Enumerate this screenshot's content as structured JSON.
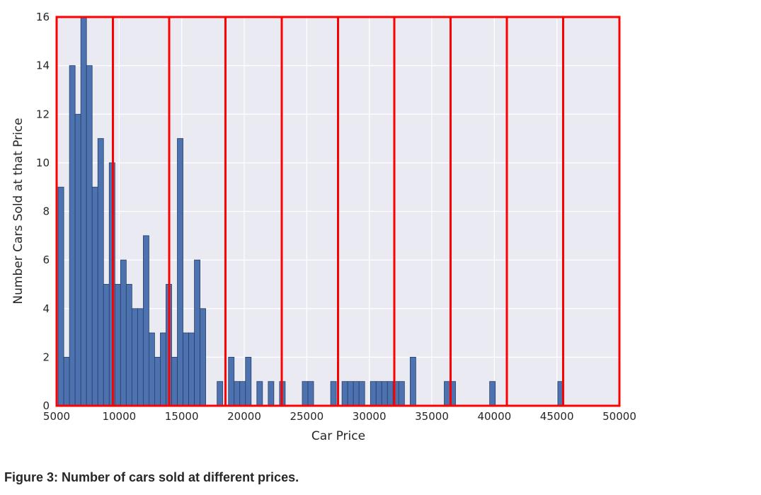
{
  "figure": {
    "caption": "Figure 3: Number of cars sold at different prices."
  },
  "chart_data": {
    "type": "bar",
    "title": "",
    "xlabel": "Car Price",
    "ylabel": "Number Cars Sold at that Price",
    "xlim": [
      5000,
      50000
    ],
    "ylim": [
      0,
      16
    ],
    "xticks": [
      5000,
      10000,
      15000,
      20000,
      25000,
      30000,
      35000,
      40000,
      45000,
      50000
    ],
    "yticks": [
      0,
      2,
      4,
      6,
      8,
      10,
      12,
      14,
      16
    ],
    "grid": true,
    "bin_width": 454,
    "series": [
      {
        "bin_starts": [
          5118,
          5572,
          6026,
          6480,
          6934,
          7388,
          7842,
          8296,
          8750,
          9204,
          9658,
          10112,
          10566,
          11020,
          11474,
          11928,
          12382,
          12836,
          13290,
          13744,
          14198,
          14652,
          15106,
          15560,
          16014,
          16468,
          16922,
          17376,
          17830,
          18284,
          18738,
          19192,
          19646,
          20100,
          20554,
          21008,
          21462,
          21916,
          22370,
          22824,
          23278,
          23732,
          24186,
          24640,
          25094,
          25548,
          26002,
          26456,
          26910,
          27364,
          27818,
          28272,
          28726,
          29180,
          29634,
          30088,
          30542,
          30996,
          31450,
          31904,
          32358,
          32812,
          33266,
          33720,
          34174,
          34628,
          35082,
          35536,
          35990,
          36444,
          36898,
          37352,
          37806,
          38260,
          38714,
          39168,
          39622,
          40076,
          40530,
          40984,
          41438,
          41892,
          42346,
          42800,
          43254,
          43708,
          44162,
          44616,
          45070
        ],
        "values": [
          9,
          2,
          14,
          12,
          16,
          14,
          9,
          11,
          5,
          10,
          5,
          6,
          5,
          4,
          4,
          7,
          3,
          2,
          3,
          5,
          2,
          11,
          3,
          3,
          6,
          4,
          0,
          0,
          1,
          0,
          2,
          1,
          1,
          2,
          0,
          1,
          0,
          1,
          0,
          1,
          0,
          0,
          0,
          1,
          1,
          0,
          0,
          0,
          1,
          0,
          1,
          1,
          1,
          1,
          0,
          1,
          1,
          1,
          1,
          1,
          1,
          0,
          2,
          0,
          0,
          0,
          0,
          0,
          1,
          1,
          0,
          0,
          0,
          0,
          0,
          0,
          1,
          0,
          0,
          0,
          0,
          0,
          0,
          0,
          0,
          0,
          0,
          0,
          1
        ]
      }
    ],
    "colors": {
      "bar": "#4c72b0",
      "bar_edge": "#2a3f66",
      "plot_bg": "#eaeaf2",
      "grid": "#ffffff",
      "annotation": "#ff0000"
    },
    "annotations": {
      "type": "red-rectangles",
      "boundaries": [
        5000,
        9500,
        14000,
        18500,
        23000,
        27500,
        32000,
        36500,
        41000,
        45500,
        50000
      ]
    }
  }
}
